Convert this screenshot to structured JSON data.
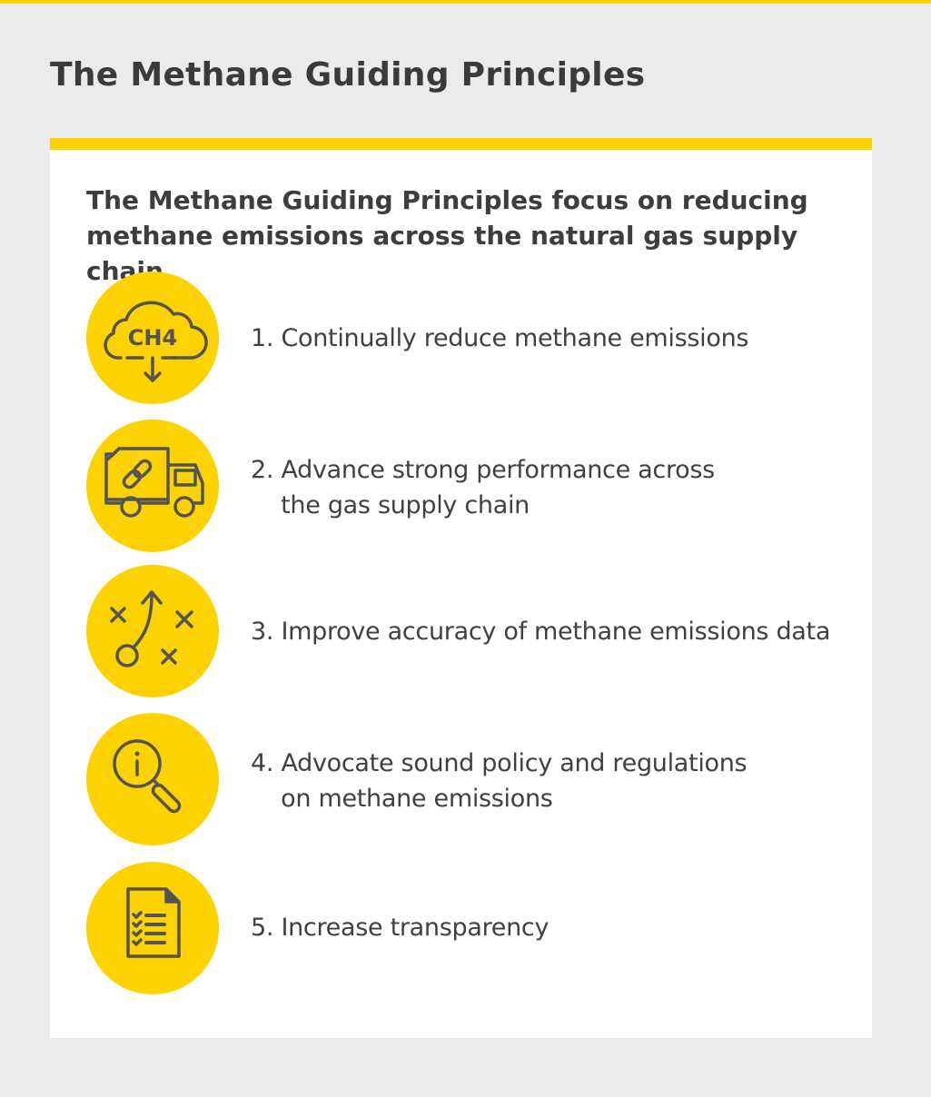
{
  "title": "The Methane Guiding Principles",
  "card": {
    "subtitle": "The Methane Guiding Principles focus on reducing methane emissions across the natural gas supply chain",
    "items": [
      {
        "icon": "cloud-ch4-down-icon",
        "icon_text": "CH4",
        "line1": "1. Continually reduce methane emissions",
        "line2": ""
      },
      {
        "icon": "truck-chain-link-icon",
        "line1": "2. Advance strong performance across",
        "line2": "    the gas supply chain"
      },
      {
        "icon": "strategy-play-icon",
        "line1": "3. Improve accuracy of methane emissions data",
        "line2": ""
      },
      {
        "icon": "magnifier-info-icon",
        "line1": "4. Advocate sound policy and regulations",
        "line2": "    on methane emissions"
      },
      {
        "icon": "checklist-document-icon",
        "line1": "5. Increase transparency",
        "line2": ""
      }
    ]
  },
  "colors": {
    "accent": "#fcd200",
    "background": "#ebebeb",
    "text": "#3d3d3d",
    "icon": "#545454"
  }
}
